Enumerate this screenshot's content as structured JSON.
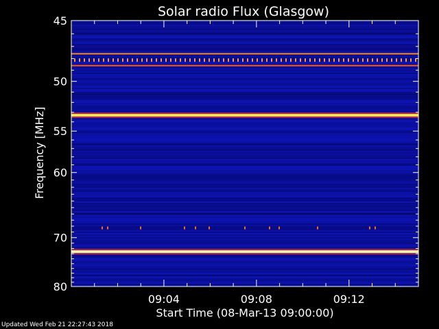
{
  "chart_data": {
    "type": "heatmap",
    "title": "Solar radio Flux (Glasgow)",
    "xlabel": "Start Time (08-Mar-13 09:00:00)",
    "ylabel": "Frequency [MHz]",
    "x_range_minutes": [
      0,
      15
    ],
    "x_ticks": [
      {
        "minute": 4,
        "label": "09:04"
      },
      {
        "minute": 8,
        "label": "09:08"
      },
      {
        "minute": 12,
        "label": "09:12"
      }
    ],
    "y_scale": "reciprocal",
    "y_range_mhz": [
      45,
      80
    ],
    "y_ticks": [
      {
        "mhz": 45,
        "label": "45"
      },
      {
        "mhz": 50,
        "label": "50"
      },
      {
        "mhz": 55,
        "label": "55"
      },
      {
        "mhz": 60,
        "label": "60"
      },
      {
        "mhz": 70,
        "label": "70"
      },
      {
        "mhz": 80,
        "label": "80"
      }
    ],
    "background_color": "#0a0e9a",
    "bright_bands": [
      {
        "mhz": 47.6,
        "color": "#ff8a1e"
      },
      {
        "mhz": 48.6,
        "color": "#ff5a10"
      },
      {
        "mhz": 53.3,
        "color": "#ffe060"
      },
      {
        "mhz": 72.6,
        "color": "#fff2a0"
      }
    ]
  },
  "footer_text": "Updated Wed Feb 21 22:27:43 2018"
}
